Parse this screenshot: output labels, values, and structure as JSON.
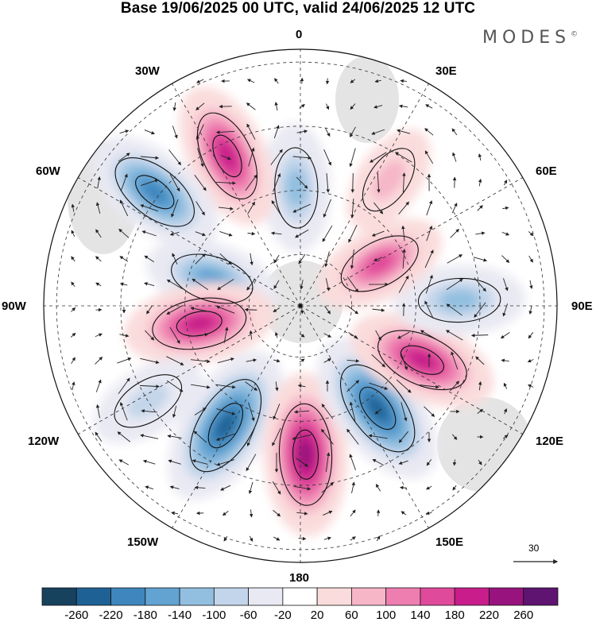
{
  "title": "Base 19/06/2025 00 UTC, valid 24/06/2025 12 UTC",
  "brand": "MODES",
  "brand_mark": "©",
  "longitude_labels": {
    "lon_0": "0",
    "lon_30e": "30E",
    "lon_60e": "60E",
    "lon_90e": "90E",
    "lon_120e": "120E",
    "lon_150e": "150E",
    "lon_180": "180",
    "lon_150w": "150W",
    "lon_120w": "120W",
    "lon_90w": "90W",
    "lon_60w": "60W",
    "lon_30w": "30W"
  },
  "vector_reference": {
    "value": "30"
  },
  "colorbar": {
    "labels": [
      "-260",
      "-220",
      "-180",
      "-140",
      "-100",
      "-60",
      "-20",
      "20",
      "60",
      "100",
      "140",
      "180",
      "220",
      "260"
    ],
    "colors": [
      "#16425e",
      "#1e6295",
      "#3e86bd",
      "#62a3d2",
      "#92bfe0",
      "#c3d5ea",
      "#e9e9f3",
      "#ffffff",
      "#fadcdc",
      "#f6b6c8",
      "#ee7eb0",
      "#e04a9a",
      "#c81d8a",
      "#98137d",
      "#5e1470"
    ]
  },
  "anomaly_centers": [
    {
      "id": "a1",
      "lon": -2,
      "lat_ring": 0.46,
      "value": -120
    },
    {
      "id": "a2",
      "lon": -26,
      "lat_ring": 0.65,
      "value": 190
    },
    {
      "id": "a3",
      "lon": -52,
      "lat_ring": 0.72,
      "value": -190
    },
    {
      "id": "a4",
      "lon": -73,
      "lat_ring": 0.36,
      "value": -140
    },
    {
      "id": "a5",
      "lon": -100,
      "lat_ring": 0.4,
      "value": 200
    },
    {
      "id": "a6",
      "lon": -148,
      "lat_ring": 0.55,
      "value": -250
    },
    {
      "id": "a7",
      "lon": 178,
      "lat_ring": 0.58,
      "value": 240
    },
    {
      "id": "a8",
      "lon": 143,
      "lat_ring": 0.5,
      "value": -240
    },
    {
      "id": "a9",
      "lon": 114,
      "lat_ring": 0.52,
      "value": 200
    },
    {
      "id": "a10",
      "lon": 88,
      "lat_ring": 0.62,
      "value": -130
    },
    {
      "id": "a11",
      "lon": 62,
      "lat_ring": 0.35,
      "value": 140
    },
    {
      "id": "a12",
      "lon": 35,
      "lat_ring": 0.6,
      "value": 70
    },
    {
      "id": "a13",
      "lon": -122,
      "lat_ring": 0.7,
      "value": -90
    }
  ]
}
